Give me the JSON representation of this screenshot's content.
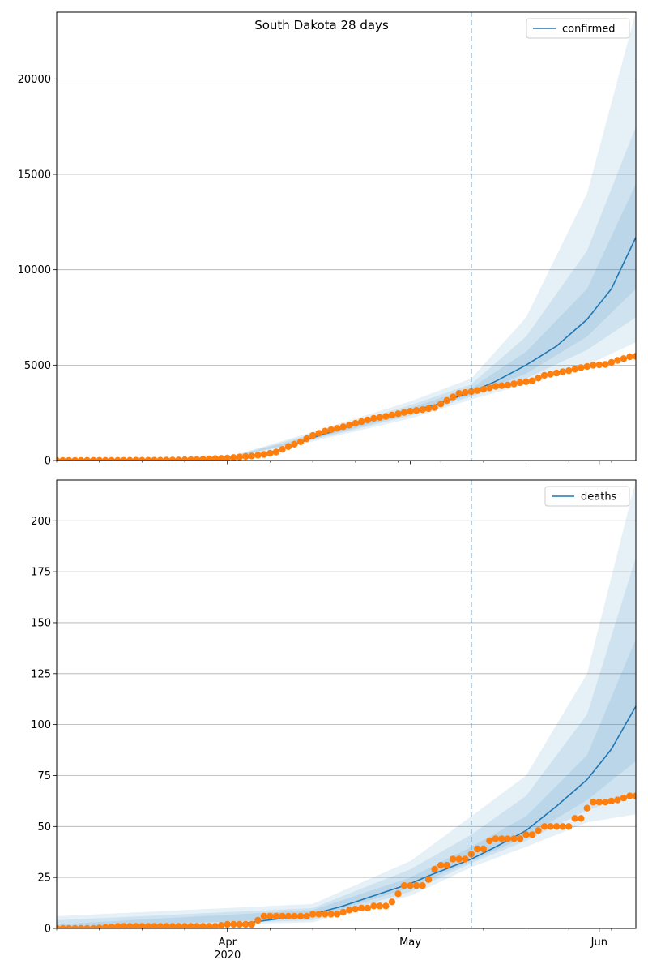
{
  "title": "South Dakota 28 days",
  "x_ticks": [
    {
      "date": "2020-04-01",
      "label": "Apr",
      "sublabel": "2020"
    },
    {
      "date": "2020-05-01",
      "label": "May",
      "sublabel": ""
    },
    {
      "date": "2020-06-01",
      "label": "Jun",
      "sublabel": ""
    }
  ],
  "colors": {
    "line": "#1f77b4",
    "observed": "#ff7f0e",
    "band": "#1f77b4",
    "grid": "#b0b0b0",
    "vline": "#1f77b4"
  },
  "chart_data": [
    {
      "type": "line",
      "series_name": "confirmed",
      "x_range": [
        "2020-03-04",
        "2020-06-07"
      ],
      "ylim": [
        0,
        23500
      ],
      "yticks": [
        0,
        5000,
        10000,
        15000,
        20000
      ],
      "grid": "y",
      "legend": "top-right",
      "forecast_start": "2020-05-11",
      "legend_label": "confirmed",
      "observed_points": [
        [
          "2020-03-04",
          0
        ],
        [
          "2020-03-10",
          8
        ],
        [
          "2020-03-14",
          9
        ],
        [
          "2020-03-16",
          11
        ],
        [
          "2020-03-18",
          11
        ],
        [
          "2020-03-20",
          14
        ],
        [
          "2020-03-22",
          21
        ],
        [
          "2020-03-24",
          30
        ],
        [
          "2020-03-26",
          46
        ],
        [
          "2020-03-28",
          68
        ],
        [
          "2020-03-30",
          101
        ],
        [
          "2020-04-01",
          129
        ],
        [
          "2020-04-03",
          187
        ],
        [
          "2020-04-05",
          240
        ],
        [
          "2020-04-07",
          320
        ],
        [
          "2020-04-09",
          447
        ],
        [
          "2020-04-11",
          730
        ],
        [
          "2020-04-13",
          988
        ],
        [
          "2020-04-15",
          1311
        ],
        [
          "2020-04-17",
          1542
        ],
        [
          "2020-04-19",
          1685
        ],
        [
          "2020-04-21",
          1858
        ],
        [
          "2020-04-23",
          2040
        ],
        [
          "2020-04-25",
          2212
        ],
        [
          "2020-04-27",
          2313
        ],
        [
          "2020-04-29",
          2450
        ],
        [
          "2020-05-01",
          2588
        ],
        [
          "2020-05-03",
          2668
        ],
        [
          "2020-05-05",
          2779
        ],
        [
          "2020-05-07",
          3144
        ],
        [
          "2020-05-09",
          3517
        ],
        [
          "2020-05-11",
          3614
        ],
        [
          "2020-05-13",
          3732
        ],
        [
          "2020-05-15",
          3887
        ],
        [
          "2020-05-17",
          3959
        ],
        [
          "2020-05-19",
          4085
        ],
        [
          "2020-05-21",
          4177
        ],
        [
          "2020-05-23",
          4466
        ],
        [
          "2020-05-25",
          4586
        ],
        [
          "2020-05-27",
          4710
        ],
        [
          "2020-05-29",
          4866
        ],
        [
          "2020-05-31",
          4993
        ],
        [
          "2020-06-02",
          5034
        ],
        [
          "2020-06-04",
          5247
        ],
        [
          "2020-06-06",
          5438
        ],
        [
          "2020-06-07",
          5460
        ]
      ],
      "model_line": [
        [
          "2020-03-04",
          0
        ],
        [
          "2020-03-20",
          14
        ],
        [
          "2020-03-30",
          100
        ],
        [
          "2020-04-05",
          230
        ],
        [
          "2020-04-10",
          600
        ],
        [
          "2020-04-15",
          1200
        ],
        [
          "2020-04-20",
          1700
        ],
        [
          "2020-04-25",
          2150
        ],
        [
          "2020-05-01",
          2600
        ],
        [
          "2020-05-05",
          2900
        ],
        [
          "2020-05-11",
          3600
        ],
        [
          "2020-05-15",
          4150
        ],
        [
          "2020-05-20",
          5000
        ],
        [
          "2020-05-25",
          6000
        ],
        [
          "2020-05-30",
          7400
        ],
        [
          "2020-06-03",
          9000
        ],
        [
          "2020-06-07",
          11700
        ]
      ],
      "bands": [
        {
          "level": "outer",
          "lower": [
            [
              "2020-04-01",
              90
            ],
            [
              "2020-04-15",
              1000
            ],
            [
              "2020-05-01",
              2200
            ],
            [
              "2020-05-11",
              3200
            ],
            [
              "2020-05-20",
              4000
            ],
            [
              "2020-05-30",
              5000
            ],
            [
              "2020-06-07",
              6200
            ]
          ],
          "upper": [
            [
              "2020-04-01",
              180
            ],
            [
              "2020-04-15",
              1500
            ],
            [
              "2020-05-01",
              3100
            ],
            [
              "2020-05-11",
              4300
            ],
            [
              "2020-05-20",
              7500
            ],
            [
              "2020-05-30",
              14000
            ],
            [
              "2020-06-07",
              23500
            ]
          ]
        },
        {
          "level": "middle",
          "lower": [
            [
              "2020-04-01",
              105
            ],
            [
              "2020-04-15",
              1080
            ],
            [
              "2020-05-01",
              2350
            ],
            [
              "2020-05-11",
              3350
            ],
            [
              "2020-05-20",
              4300
            ],
            [
              "2020-05-30",
              5800
            ],
            [
              "2020-06-07",
              7500
            ]
          ],
          "upper": [
            [
              "2020-04-01",
              160
            ],
            [
              "2020-04-15",
              1400
            ],
            [
              "2020-05-01",
              2900
            ],
            [
              "2020-05-11",
              4000
            ],
            [
              "2020-05-20",
              6500
            ],
            [
              "2020-05-30",
              11000
            ],
            [
              "2020-06-07",
              17500
            ]
          ]
        },
        {
          "level": "inner",
          "lower": [
            [
              "2020-04-01",
              115
            ],
            [
              "2020-04-15",
              1140
            ],
            [
              "2020-05-01",
              2450
            ],
            [
              "2020-05-11",
              3450
            ],
            [
              "2020-05-20",
              4550
            ],
            [
              "2020-05-30",
              6500
            ],
            [
              "2020-06-07",
              9000
            ]
          ],
          "upper": [
            [
              "2020-04-01",
              145
            ],
            [
              "2020-04-15",
              1300
            ],
            [
              "2020-05-01",
              2750
            ],
            [
              "2020-05-11",
              3800
            ],
            [
              "2020-05-20",
              5700
            ],
            [
              "2020-05-30",
              9000
            ],
            [
              "2020-06-07",
              14500
            ]
          ]
        }
      ]
    },
    {
      "type": "line",
      "series_name": "deaths",
      "x_range": [
        "2020-03-04",
        "2020-06-07"
      ],
      "ylim": [
        0,
        220
      ],
      "yticks": [
        0,
        25,
        50,
        75,
        100,
        125,
        150,
        175,
        200
      ],
      "grid": "y",
      "legend": "top-right",
      "forecast_start": "2020-05-11",
      "legend_label": "deaths",
      "observed_points": [
        [
          "2020-03-04",
          0
        ],
        [
          "2020-03-10",
          0
        ],
        [
          "2020-03-14",
          1
        ],
        [
          "2020-03-18",
          1
        ],
        [
          "2020-03-22",
          1
        ],
        [
          "2020-03-26",
          1
        ],
        [
          "2020-03-30",
          1
        ],
        [
          "2020-04-01",
          2
        ],
        [
          "2020-04-03",
          2
        ],
        [
          "2020-04-05",
          2
        ],
        [
          "2020-04-06",
          4
        ],
        [
          "2020-04-07",
          6
        ],
        [
          "2020-04-09",
          6
        ],
        [
          "2020-04-11",
          6
        ],
        [
          "2020-04-13",
          6
        ],
        [
          "2020-04-14",
          6
        ],
        [
          "2020-04-15",
          7
        ],
        [
          "2020-04-17",
          7
        ],
        [
          "2020-04-19",
          7
        ],
        [
          "2020-04-20",
          8
        ],
        [
          "2020-04-21",
          9
        ],
        [
          "2020-04-23",
          10
        ],
        [
          "2020-04-24",
          10
        ],
        [
          "2020-04-25",
          11
        ],
        [
          "2020-04-27",
          11
        ],
        [
          "2020-04-28",
          13
        ],
        [
          "2020-04-29",
          17
        ],
        [
          "2020-04-30",
          21
        ],
        [
          "2020-05-02",
          21
        ],
        [
          "2020-05-03",
          21
        ],
        [
          "2020-05-04",
          24
        ],
        [
          "2020-05-05",
          29
        ],
        [
          "2020-05-06",
          31
        ],
        [
          "2020-05-07",
          31
        ],
        [
          "2020-05-08",
          34
        ],
        [
          "2020-05-09",
          34
        ],
        [
          "2020-05-10",
          34
        ],
        [
          "2020-05-12",
          39
        ],
        [
          "2020-05-13",
          39
        ],
        [
          "2020-05-14",
          43
        ],
        [
          "2020-05-15",
          44
        ],
        [
          "2020-05-17",
          44
        ],
        [
          "2020-05-19",
          44
        ],
        [
          "2020-05-20",
          46
        ],
        [
          "2020-05-21",
          46
        ],
        [
          "2020-05-22",
          48
        ],
        [
          "2020-05-23",
          50
        ],
        [
          "2020-05-25",
          50
        ],
        [
          "2020-05-27",
          50
        ],
        [
          "2020-05-28",
          54
        ],
        [
          "2020-05-29",
          54
        ],
        [
          "2020-05-30",
          59
        ],
        [
          "2020-05-31",
          62
        ],
        [
          "2020-06-02",
          62
        ],
        [
          "2020-06-04",
          63
        ],
        [
          "2020-06-05",
          64
        ],
        [
          "2020-06-06",
          65
        ],
        [
          "2020-06-07",
          65
        ]
      ],
      "model_line": [
        [
          "2020-03-04",
          0
        ],
        [
          "2020-03-30",
          1
        ],
        [
          "2020-04-05",
          3
        ],
        [
          "2020-04-10",
          5
        ],
        [
          "2020-04-15",
          7
        ],
        [
          "2020-04-20",
          11
        ],
        [
          "2020-04-25",
          16
        ],
        [
          "2020-05-01",
          22
        ],
        [
          "2020-05-05",
          27
        ],
        [
          "2020-05-11",
          34
        ],
        [
          "2020-05-15",
          40
        ],
        [
          "2020-05-20",
          48
        ],
        [
          "2020-05-25",
          60
        ],
        [
          "2020-05-30",
          73
        ],
        [
          "2020-06-03",
          88
        ],
        [
          "2020-06-07",
          109
        ]
      ],
      "bands": [
        {
          "level": "outer",
          "lower": [
            [
              "2020-03-04",
              0
            ],
            [
              "2020-04-15",
              3
            ],
            [
              "2020-05-01",
              16
            ],
            [
              "2020-05-11",
              30
            ],
            [
              "2020-05-20",
              40
            ],
            [
              "2020-05-30",
              52
            ],
            [
              "2020-06-07",
              56
            ]
          ],
          "upper": [
            [
              "2020-03-04",
              6
            ],
            [
              "2020-04-15",
              12
            ],
            [
              "2020-05-01",
              33
            ],
            [
              "2020-05-11",
              55
            ],
            [
              "2020-05-20",
              75
            ],
            [
              "2020-05-30",
              125
            ],
            [
              "2020-06-07",
              220
            ]
          ]
        },
        {
          "level": "middle",
          "lower": [
            [
              "2020-03-04",
              0
            ],
            [
              "2020-04-15",
              4
            ],
            [
              "2020-05-01",
              18
            ],
            [
              "2020-05-11",
              32
            ],
            [
              "2020-05-20",
              43
            ],
            [
              "2020-05-30",
              58
            ],
            [
              "2020-06-07",
              66
            ]
          ],
          "upper": [
            [
              "2020-03-04",
              4
            ],
            [
              "2020-04-15",
              10
            ],
            [
              "2020-05-01",
              29
            ],
            [
              "2020-05-11",
              46
            ],
            [
              "2020-05-20",
              65
            ],
            [
              "2020-05-30",
              105
            ],
            [
              "2020-06-07",
              182
            ]
          ]
        },
        {
          "level": "inner",
          "lower": [
            [
              "2020-03-04",
              0
            ],
            [
              "2020-04-15",
              5
            ],
            [
              "2020-05-01",
              20
            ],
            [
              "2020-05-11",
              33
            ],
            [
              "2020-05-20",
              45
            ],
            [
              "2020-05-30",
              63
            ],
            [
              "2020-06-07",
              82
            ]
          ],
          "upper": [
            [
              "2020-03-04",
              2
            ],
            [
              "2020-04-15",
              9
            ],
            [
              "2020-05-01",
              25
            ],
            [
              "2020-05-11",
              40
            ],
            [
              "2020-05-20",
              55
            ],
            [
              "2020-05-30",
              85
            ],
            [
              "2020-06-07",
              142
            ]
          ]
        }
      ]
    }
  ]
}
